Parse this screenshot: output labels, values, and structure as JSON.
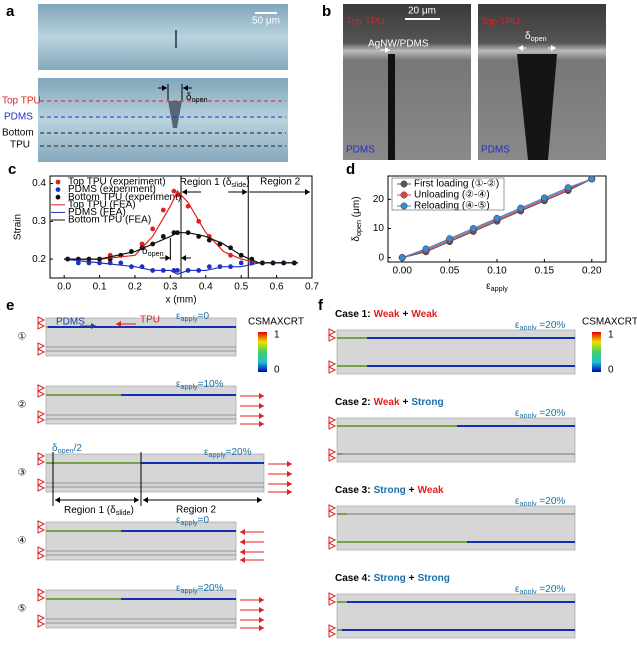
{
  "panel_a": {
    "label": "a",
    "scale_bar": "50 μm",
    "layers": [
      "Top TPU",
      "PDMS"
    ],
    "bottom_layer": [
      "Bottom",
      "TPU"
    ],
    "delta": {
      "base": "δ",
      "sub": "open"
    }
  },
  "panel_b": {
    "label": "b",
    "top_tpu": [
      "Top TPU",
      "Top TPU"
    ],
    "scale_bar": "20 μm",
    "agnw": "AgNW/PDMS",
    "pdms": [
      "PDMS",
      "PDMS"
    ],
    "delta": {
      "base": "δ",
      "sub": "open"
    }
  },
  "chart_data": [
    {
      "type": "line",
      "label": "c",
      "x_label": "x (mm)",
      "y_label": "Strain",
      "xlim": [
        -0.04,
        0.7
      ],
      "ylim": [
        0.15,
        0.42
      ],
      "xticks": [
        {
          "value": 0,
          "label": "0.0"
        },
        0.1,
        0.2,
        0.3,
        0.4,
        0.5,
        0.6,
        0.7
      ],
      "yticks": [
        0.2,
        0.3,
        0.4
      ],
      "reference_lines": [
        0.33,
        0.52
      ],
      "annotations": {
        "region1": {
          "base": "Region 1 (δ",
          "sub": "slide",
          "suffix": ")"
        },
        "region2": "Region 2",
        "delta": {
          "base": "δ",
          "sub": "open"
        }
      },
      "series": [
        {
          "name": "Top TPU (experiment)",
          "color": "#e02020",
          "style": "markers",
          "x": [
            0.01,
            0.04,
            0.07,
            0.1,
            0.13,
            0.16,
            0.19,
            0.22,
            0.25,
            0.28,
            0.31,
            0.32,
            0.35,
            0.38,
            0.41,
            0.44,
            0.47,
            0.5,
            0.53,
            0.56,
            0.59,
            0.62,
            0.65
          ],
          "values": [
            0.2,
            0.2,
            0.2,
            0.2,
            0.21,
            0.21,
            0.22,
            0.24,
            0.28,
            0.33,
            0.38,
            0.37,
            0.34,
            0.3,
            0.26,
            0.24,
            0.21,
            0.21,
            0.19,
            0.19,
            0.19,
            0.19,
            0.19
          ]
        },
        {
          "name": "PDMS (experiment)",
          "color": "#2030c0",
          "style": "markers",
          "x": [
            0.01,
            0.04,
            0.07,
            0.1,
            0.13,
            0.16,
            0.19,
            0.22,
            0.25,
            0.28,
            0.31,
            0.32,
            0.35,
            0.38,
            0.41,
            0.44,
            0.47,
            0.5,
            0.53,
            0.56,
            0.59,
            0.62,
            0.65
          ],
          "values": [
            0.2,
            0.19,
            0.19,
            0.19,
            0.19,
            0.19,
            0.18,
            0.18,
            0.17,
            0.17,
            0.17,
            0.17,
            0.17,
            0.17,
            0.18,
            0.18,
            0.18,
            0.19,
            0.19,
            0.19,
            0.19,
            0.19,
            0.19
          ]
        },
        {
          "name": "Bottom TPU (experiment)",
          "color": "#111111",
          "style": "markers",
          "x": [
            0.01,
            0.04,
            0.07,
            0.1,
            0.13,
            0.16,
            0.19,
            0.22,
            0.25,
            0.28,
            0.31,
            0.32,
            0.35,
            0.38,
            0.41,
            0.44,
            0.47,
            0.5,
            0.53,
            0.56,
            0.59,
            0.62,
            0.65
          ],
          "values": [
            0.2,
            0.2,
            0.2,
            0.2,
            0.2,
            0.21,
            0.22,
            0.23,
            0.24,
            0.26,
            0.27,
            0.27,
            0.27,
            0.26,
            0.25,
            0.24,
            0.23,
            0.21,
            0.2,
            0.19,
            0.19,
            0.19,
            0.19
          ]
        },
        {
          "name": "Top TPU (FEA)",
          "color": "#e02020",
          "style": "line",
          "x": [
            0,
            0.1,
            0.2,
            0.25,
            0.3,
            0.32,
            0.35,
            0.4,
            0.45,
            0.5,
            0.55,
            0.6,
            0.66
          ],
          "values": [
            0.2,
            0.2,
            0.21,
            0.26,
            0.34,
            0.38,
            0.35,
            0.27,
            0.22,
            0.2,
            0.19,
            0.19,
            0.19
          ]
        },
        {
          "name": "PDMS (FEA)",
          "color": "#2030c0",
          "style": "line",
          "x": [
            0,
            0.1,
            0.2,
            0.25,
            0.3,
            0.32,
            0.35,
            0.4,
            0.45,
            0.5,
            0.55,
            0.6,
            0.66
          ],
          "values": [
            0.2,
            0.19,
            0.18,
            0.17,
            0.17,
            0.16,
            0.17,
            0.17,
            0.18,
            0.18,
            0.19,
            0.19,
            0.19
          ]
        },
        {
          "name": "Bottom TPU (FEA)",
          "color": "#111111",
          "style": "line",
          "x": [
            0,
            0.1,
            0.2,
            0.25,
            0.3,
            0.32,
            0.35,
            0.4,
            0.45,
            0.5,
            0.55,
            0.6,
            0.66
          ],
          "values": [
            0.2,
            0.2,
            0.22,
            0.24,
            0.26,
            0.27,
            0.27,
            0.26,
            0.24,
            0.21,
            0.19,
            0.19,
            0.19
          ]
        }
      ]
    },
    {
      "type": "line",
      "label": "d",
      "x_label": {
        "base": "ε",
        "sub": "apply"
      },
      "y_label": {
        "base": "δ",
        "sub": "open",
        "suffix": " (μm)"
      },
      "xlim": [
        -0.015,
        0.215
      ],
      "ylim": [
        -1.5,
        28
      ],
      "xticks": [
        {
          "value": 0,
          "label": "0.00"
        },
        {
          "value": 0.05,
          "label": "0.05"
        },
        {
          "value": 0.1,
          "label": "0.10"
        },
        {
          "value": 0.15,
          "label": "0.15"
        },
        {
          "value": 0.2,
          "label": "0.20"
        }
      ],
      "yticks": [
        0,
        10,
        20
      ],
      "series": [
        {
          "name": "First loading (①-②)",
          "color": "#555566",
          "style": "line-markers",
          "x": [
            0,
            0.025,
            0.05,
            0.075,
            0.1,
            0.125,
            0.15,
            0.175,
            0.2
          ],
          "values": [
            0,
            2,
            5.5,
            9,
            12.5,
            16,
            19.5,
            23,
            27
          ]
        },
        {
          "name": "Unloading (②-④)",
          "color": "#e04848",
          "style": "line-markers",
          "x": [
            0.2,
            0.175,
            0.15,
            0.125,
            0.1,
            0.075,
            0.05,
            0.025,
            0
          ],
          "values": [
            27,
            23.5,
            20,
            16.5,
            13,
            9.5,
            6,
            2.5,
            0
          ]
        },
        {
          "name": "Reloading (④-⑤)",
          "color": "#3a8ad0",
          "style": "line-markers",
          "x": [
            0,
            0.025,
            0.05,
            0.075,
            0.1,
            0.125,
            0.15,
            0.175,
            0.2
          ],
          "values": [
            0,
            3,
            6.5,
            10,
            13.5,
            17,
            20.5,
            24,
            27
          ]
        }
      ]
    }
  ],
  "panel_e": {
    "label": "e",
    "pdms": "PDMS",
    "tpu": "TPU",
    "colorbar": {
      "title": "CSMAXCRT",
      "max": 1,
      "min": 0
    },
    "steps": [
      {
        "index": "①",
        "strain": {
          "base": "ε",
          "sub": "apply",
          "suffix": "=0"
        }
      },
      {
        "index": "②",
        "strain": {
          "base": "ε",
          "sub": "apply",
          "suffix": "=10%"
        }
      },
      {
        "index": "③",
        "strain": {
          "base": "ε",
          "sub": "apply",
          "suffix": "=20%"
        }
      },
      {
        "index": "④",
        "strain": {
          "base": "ε",
          "sub": "apply",
          "suffix": "=0"
        }
      },
      {
        "index": "⑤",
        "strain": {
          "base": "ε",
          "sub": "apply",
          "suffix": "=20%"
        }
      }
    ],
    "delta": {
      "base": "δ",
      "sub": "open",
      "suffix": "/2"
    },
    "region1": {
      "base": "Region 1 (δ",
      "sub": "slide",
      "suffix": ")"
    },
    "region2": "Region 2"
  },
  "panel_f": {
    "label": "f",
    "colorbar": {
      "title": "CSMAXCRT",
      "max": 1,
      "min": 0
    },
    "cases": [
      {
        "label": "Case 1:",
        "top": {
          "text": "Weak",
          "color": "#e02020"
        },
        "plus": "+",
        "bottom": {
          "text": "Weak",
          "color": "#e02020"
        },
        "strain": {
          "base": "ε",
          "sub": "apply",
          "suffix": " =20%"
        }
      },
      {
        "label": "Case 2:",
        "top": {
          "text": "Weak",
          "color": "#e02020"
        },
        "plus": "+",
        "bottom": {
          "text": "Strong",
          "color": "#1a6fa8"
        },
        "strain": {
          "base": "ε",
          "sub": "apply",
          "suffix": " =20%"
        }
      },
      {
        "label": "Case 3:",
        "top": {
          "text": "Strong",
          "color": "#1a6fa8"
        },
        "plus": "+",
        "bottom": {
          "text": "Weak",
          "color": "#e02020"
        },
        "strain": {
          "base": "ε",
          "sub": "apply",
          "suffix": " =20%"
        }
      },
      {
        "label": "Case 4:",
        "top": {
          "text": "Strong",
          "color": "#1a6fa8"
        },
        "plus": "+",
        "bottom": {
          "text": "Strong",
          "color": "#1a6fa8"
        },
        "strain": {
          "base": "ε",
          "sub": "apply",
          "suffix": " =20%"
        }
      }
    ]
  }
}
